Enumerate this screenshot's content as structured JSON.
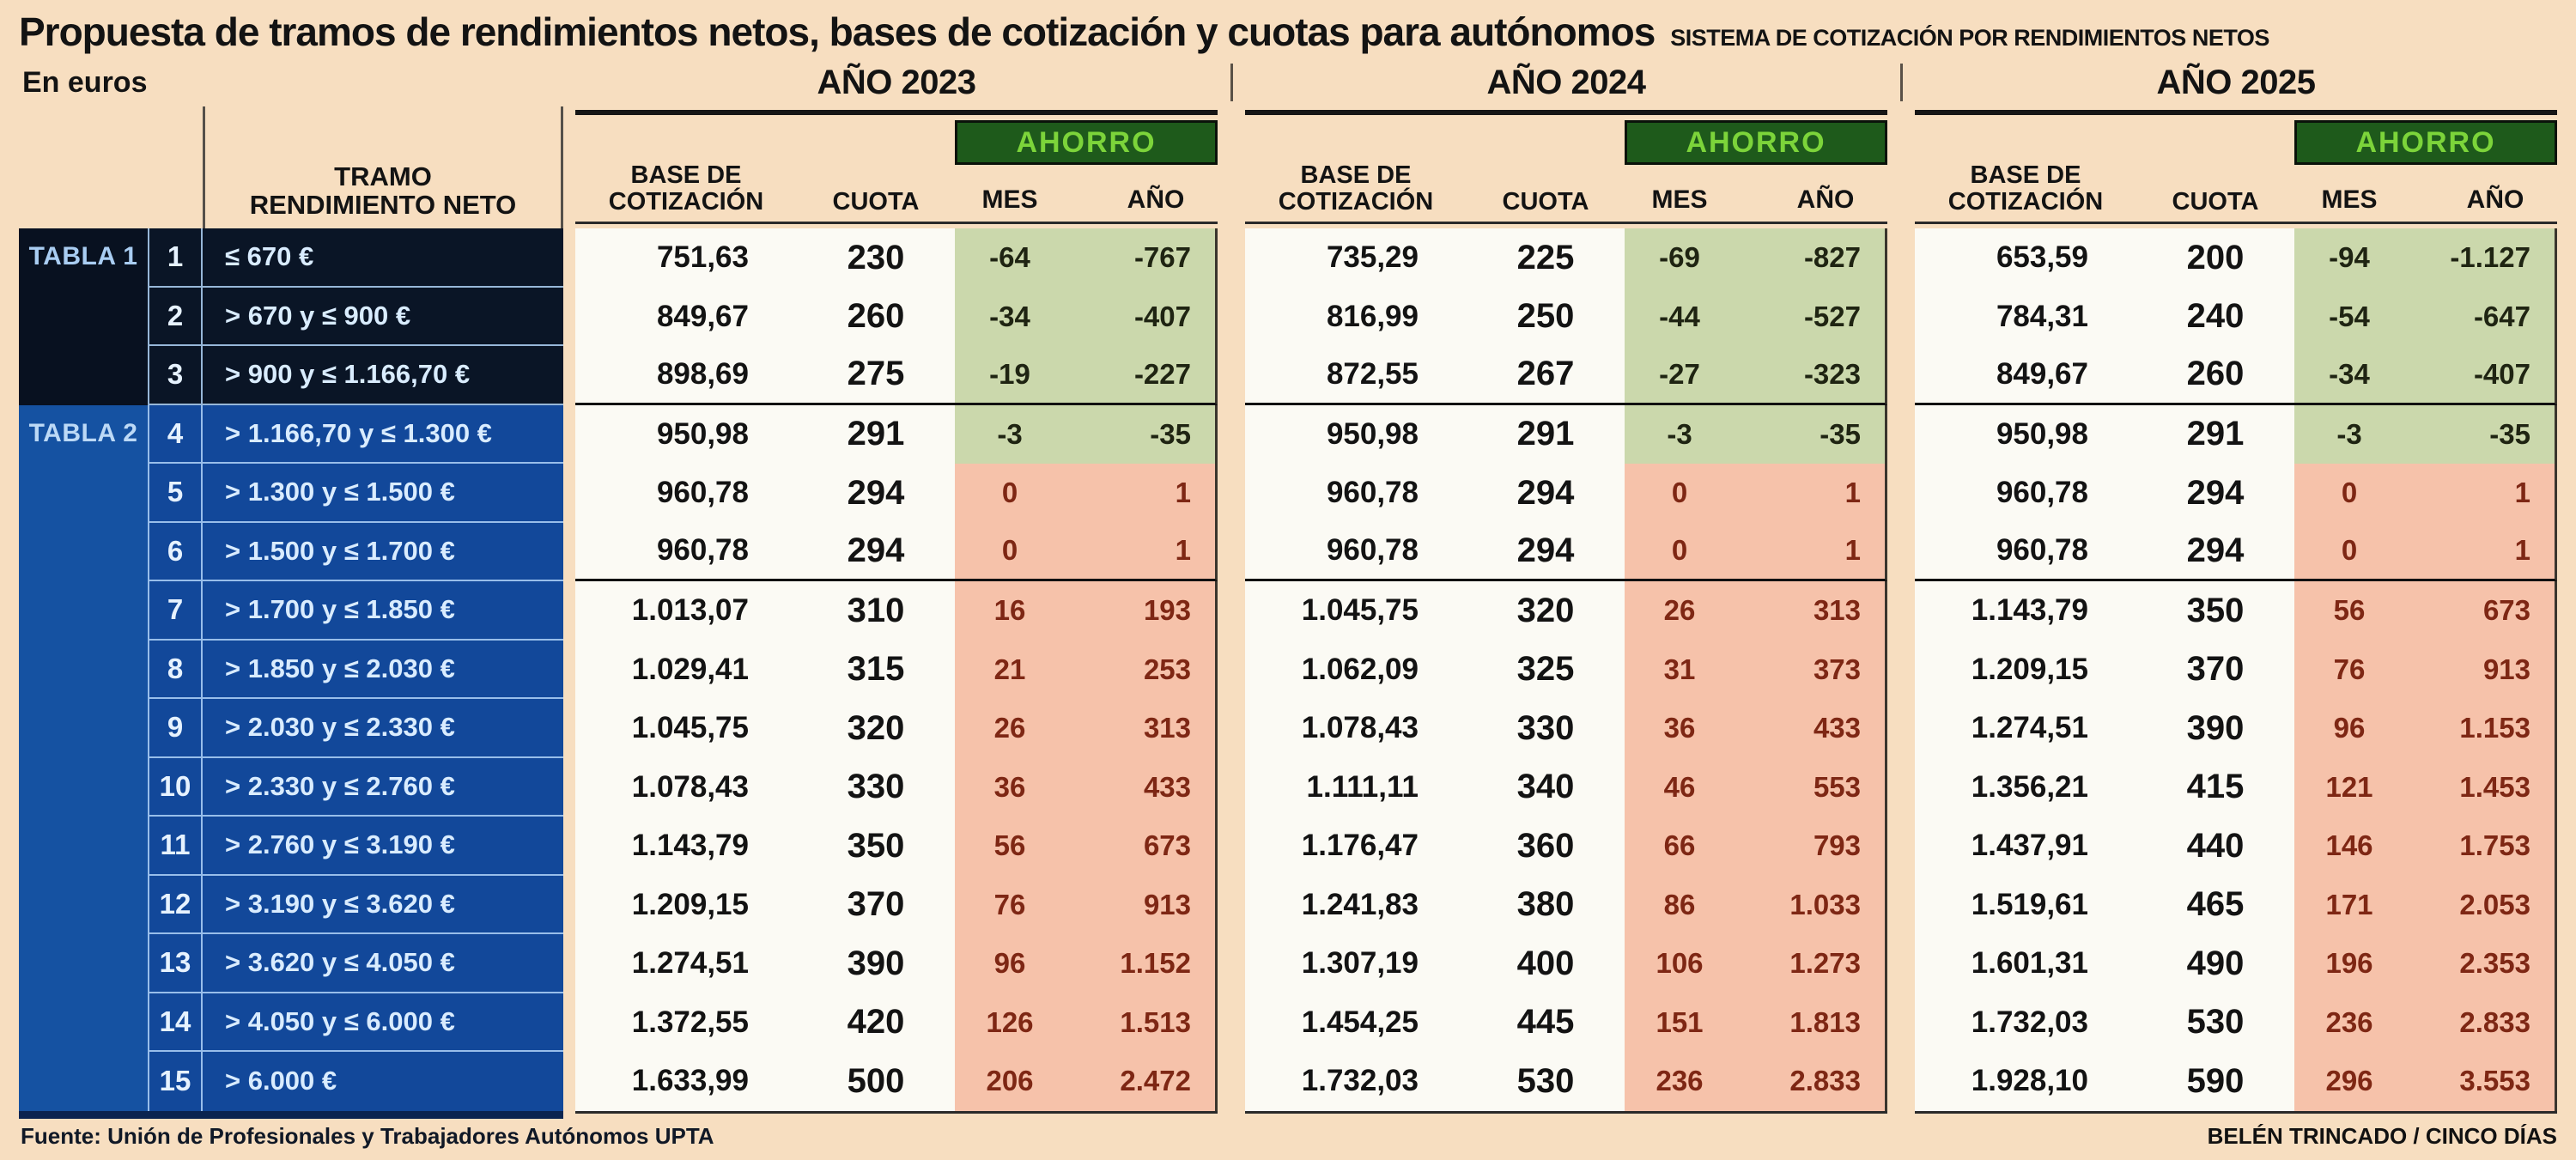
{
  "title": "Propuesta de tramos de rendimientos netos, bases de cotización y cuotas para autónomos",
  "subtitle": "SISTEMA DE COTIZACIÓN POR RENDIMIENTOS NETOS",
  "units_label": "En euros",
  "left_header": {
    "tramo": "TRAMO RENDIMIENTO NETO"
  },
  "column_headers": {
    "base": "BASE DE COTIZACIÓN",
    "cuota": "CUOTA",
    "ahorro": "AHORRO",
    "mes": "MES",
    "ano": "AÑO"
  },
  "years": [
    "AÑO 2023",
    "AÑO 2024",
    "AÑO 2025"
  ],
  "tables": [
    {
      "label": "TABLA 1",
      "row_span": [
        1,
        3
      ]
    },
    {
      "label": "TABLA 2",
      "row_span": [
        4,
        15
      ]
    }
  ],
  "footer": {
    "source": "Fuente: Unión de Profesionales y Trabajadores Autónomos UPTA",
    "credit": "BELÉN TRINCADO / CINCO DÍAS"
  },
  "colors": {
    "page_bg": "#f7dec0",
    "tabla1_bg": "#081120",
    "tabla2_bg": "#1552a2",
    "ahorro_box_bg": "#1e5a1b",
    "ahorro_box_text": "#7cd43a",
    "ahorro_green_tint": "#cbd8ac",
    "ahorro_pink_tint": "#f6c2aa",
    "negative_text": "#1f2412",
    "positive_text": "#7e2714"
  },
  "chart_data": {
    "type": "table",
    "title": "Propuesta de tramos de rendimientos netos, bases de cotización y cuotas para autónomos",
    "unit": "euros",
    "year_groups": [
      "AÑO 2023",
      "AÑO 2024",
      "AÑO 2025"
    ],
    "columns_per_year": [
      "BASE DE COTIZACIÓN",
      "CUOTA",
      "AHORRO MES",
      "AHORRO AÑO"
    ],
    "rows": [
      {
        "n": "1",
        "tabla": 1,
        "tramo": "≤ 670 €",
        "tint": "green",
        "y2023": [
          "751,63",
          "230",
          "-64",
          "-767"
        ],
        "y2024": [
          "735,29",
          "225",
          "-69",
          "-827"
        ],
        "y2025": [
          "653,59",
          "200",
          "-94",
          "-1.127"
        ]
      },
      {
        "n": "2",
        "tabla": 1,
        "tramo": "> 670 y ≤ 900 €",
        "tint": "green",
        "y2023": [
          "849,67",
          "260",
          "-34",
          "-407"
        ],
        "y2024": [
          "816,99",
          "250",
          "-44",
          "-527"
        ],
        "y2025": [
          "784,31",
          "240",
          "-54",
          "-647"
        ]
      },
      {
        "n": "3",
        "tabla": 1,
        "tramo": "> 900 y ≤ 1.166,70 €",
        "tint": "green",
        "y2023": [
          "898,69",
          "275",
          "-19",
          "-227"
        ],
        "y2024": [
          "872,55",
          "267",
          "-27",
          "-323"
        ],
        "y2025": [
          "849,67",
          "260",
          "-34",
          "-407"
        ]
      },
      {
        "n": "4",
        "tabla": 2,
        "tramo": "> 1.166,70 y ≤ 1.300 €",
        "tint": "green",
        "y2023": [
          "950,98",
          "291",
          "-3",
          "-35"
        ],
        "y2024": [
          "950,98",
          "291",
          "-3",
          "-35"
        ],
        "y2025": [
          "950,98",
          "291",
          "-3",
          "-35"
        ]
      },
      {
        "n": "5",
        "tabla": 2,
        "tramo": "> 1.300 y ≤ 1.500 €",
        "tint": "pink",
        "y2023": [
          "960,78",
          "294",
          "0",
          "1"
        ],
        "y2024": [
          "960,78",
          "294",
          "0",
          "1"
        ],
        "y2025": [
          "960,78",
          "294",
          "0",
          "1"
        ]
      },
      {
        "n": "6",
        "tabla": 2,
        "tramo": "> 1.500 y ≤ 1.700 €",
        "tint": "pink",
        "y2023": [
          "960,78",
          "294",
          "0",
          "1"
        ],
        "y2024": [
          "960,78",
          "294",
          "0",
          "1"
        ],
        "y2025": [
          "960,78",
          "294",
          "0",
          "1"
        ]
      },
      {
        "n": "7",
        "tabla": 2,
        "tramo": "> 1.700 y ≤ 1.850 €",
        "tint": "pink",
        "y2023": [
          "1.013,07",
          "310",
          "16",
          "193"
        ],
        "y2024": [
          "1.045,75",
          "320",
          "26",
          "313"
        ],
        "y2025": [
          "1.143,79",
          "350",
          "56",
          "673"
        ]
      },
      {
        "n": "8",
        "tabla": 2,
        "tramo": "> 1.850 y ≤ 2.030 €",
        "tint": "pink",
        "y2023": [
          "1.029,41",
          "315",
          "21",
          "253"
        ],
        "y2024": [
          "1.062,09",
          "325",
          "31",
          "373"
        ],
        "y2025": [
          "1.209,15",
          "370",
          "76",
          "913"
        ]
      },
      {
        "n": "9",
        "tabla": 2,
        "tramo": "> 2.030 y ≤ 2.330 €",
        "tint": "pink",
        "y2023": [
          "1.045,75",
          "320",
          "26",
          "313"
        ],
        "y2024": [
          "1.078,43",
          "330",
          "36",
          "433"
        ],
        "y2025": [
          "1.274,51",
          "390",
          "96",
          "1.153"
        ]
      },
      {
        "n": "10",
        "tabla": 2,
        "tramo": "> 2.330 y ≤ 2.760 €",
        "tint": "pink",
        "y2023": [
          "1.078,43",
          "330",
          "36",
          "433"
        ],
        "y2024": [
          "1.111,11",
          "340",
          "46",
          "553"
        ],
        "y2025": [
          "1.356,21",
          "415",
          "121",
          "1.453"
        ]
      },
      {
        "n": "11",
        "tabla": 2,
        "tramo": "> 2.760 y ≤ 3.190 €",
        "tint": "pink",
        "y2023": [
          "1.143,79",
          "350",
          "56",
          "673"
        ],
        "y2024": [
          "1.176,47",
          "360",
          "66",
          "793"
        ],
        "y2025": [
          "1.437,91",
          "440",
          "146",
          "1.753"
        ]
      },
      {
        "n": "12",
        "tabla": 2,
        "tramo": "> 3.190 y ≤ 3.620 €",
        "tint": "pink",
        "y2023": [
          "1.209,15",
          "370",
          "76",
          "913"
        ],
        "y2024": [
          "1.241,83",
          "380",
          "86",
          "1.033"
        ],
        "y2025": [
          "1.519,61",
          "465",
          "171",
          "2.053"
        ]
      },
      {
        "n": "13",
        "tabla": 2,
        "tramo": "> 3.620 y ≤ 4.050 €",
        "tint": "pink",
        "y2023": [
          "1.274,51",
          "390",
          "96",
          "1.152"
        ],
        "y2024": [
          "1.307,19",
          "400",
          "106",
          "1.273"
        ],
        "y2025": [
          "1.601,31",
          "490",
          "196",
          "2.353"
        ]
      },
      {
        "n": "14",
        "tabla": 2,
        "tramo": "> 4.050 y ≤ 6.000 €",
        "tint": "pink",
        "y2023": [
          "1.372,55",
          "420",
          "126",
          "1.513"
        ],
        "y2024": [
          "1.454,25",
          "445",
          "151",
          "1.813"
        ],
        "y2025": [
          "1.732,03",
          "530",
          "236",
          "2.833"
        ]
      },
      {
        "n": "15",
        "tabla": 2,
        "tramo": "> 6.000 €",
        "tint": "pink",
        "y2023": [
          "1.633,99",
          "500",
          "206",
          "2.472"
        ],
        "y2024": [
          "1.732,03",
          "530",
          "236",
          "2.833"
        ],
        "y2025": [
          "1.928,10",
          "590",
          "296",
          "3.553"
        ]
      }
    ]
  }
}
